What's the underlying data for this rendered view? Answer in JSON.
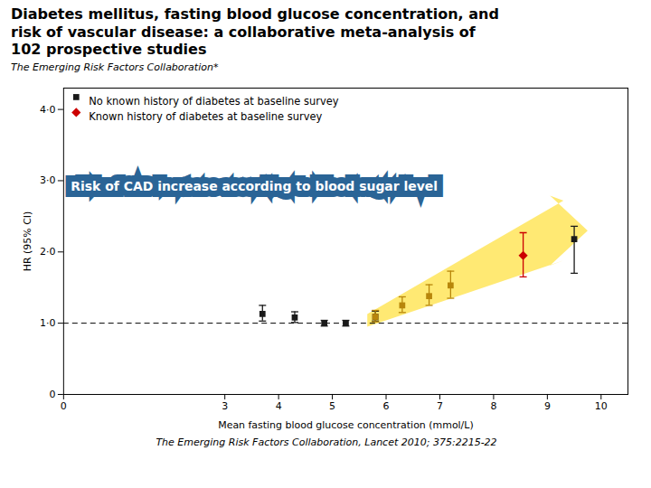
{
  "chart_data": {
    "type": "scatter",
    "title": "Diabetes mellitus, fasting blood glucose concentration, and\nrisk of vascular disease: a collaborative meta-analysis of\n102 prospective studies",
    "subtitle": "The Emerging Risk Factors Collaboration*",
    "caption": "The Emerging Risk Factors Collaboration, Lancet 2010; 375:2215-22",
    "xlabel": "Mean fasting blood glucose concentration (mmol/L)",
    "ylabel": "HR (95% CI)",
    "xlim": [
      0,
      10.5
    ],
    "ylim": [
      0,
      4.3
    ],
    "xticks": [
      0,
      3,
      4,
      5,
      6,
      7,
      8,
      9,
      10
    ],
    "yticks": [
      0,
      {
        "value": 1.0,
        "label": "1·0"
      },
      {
        "value": 2.0,
        "label": "2·0"
      },
      {
        "value": 3.0,
        "label": "3·0"
      },
      {
        "value": 4.0,
        "label": "4·0"
      }
    ],
    "grid": false,
    "legend": "upper left",
    "series": [
      {
        "name": "No known history of diabetes at baseline survey",
        "color": "#1a1a1a",
        "marker": "square",
        "x": [
          3.7,
          4.3,
          4.85,
          5.25,
          5.8
        ],
        "values": [
          1.13,
          1.08,
          1.0,
          1.0,
          1.09
        ],
        "yerr_lo": [
          0.1,
          0.07,
          0.04,
          0.04,
          0.06
        ],
        "yerr_hi": [
          0.12,
          0.08,
          0.04,
          0.04,
          0.08
        ]
      },
      {
        "color": "#b8860b",
        "marker": "square",
        "x": [
          5.8,
          6.3,
          6.8,
          7.2
        ],
        "values": [
          1.09,
          1.25,
          1.38,
          1.53
        ],
        "yerr_lo": [
          0.07,
          0.1,
          0.13,
          0.18
        ],
        "yerr_hi": [
          0.09,
          0.12,
          0.16,
          0.2
        ]
      },
      {
        "name": "Known history of diabetes at baseline survey",
        "color": "#cc0000",
        "marker": "diamond",
        "x": [
          8.55
        ],
        "values": [
          1.95
        ],
        "yerr_lo": [
          0.3
        ],
        "yerr_hi": [
          0.32
        ]
      },
      {
        "color": "#1a1a1a",
        "marker": "square",
        "x": [
          9.5
        ],
        "values": [
          2.18
        ],
        "yerr_lo": [
          0.48
        ],
        "yerr_hi": [
          0.18
        ]
      }
    ],
    "annotations": [
      {
        "type": "polygon",
        "color": "#FFD700",
        "points": [
          [
            5.65,
            0.95
          ],
          [
            9.3,
            1.88
          ],
          [
            9.05,
            1.81
          ],
          [
            9.75,
            2.3
          ],
          [
            9.05,
            2.79
          ],
          [
            9.3,
            2.72
          ],
          [
            5.65,
            1.13
          ]
        ]
      },
      {
        "type": "hline",
        "y": 1.0,
        "line_style": "dashed"
      },
      {
        "type": "text",
        "text": "Risk of CAD increase according to blood sugar level",
        "x": 0,
        "y": 2.92,
        "color": "#ffffff",
        "background": "#2a6496"
      }
    ]
  }
}
